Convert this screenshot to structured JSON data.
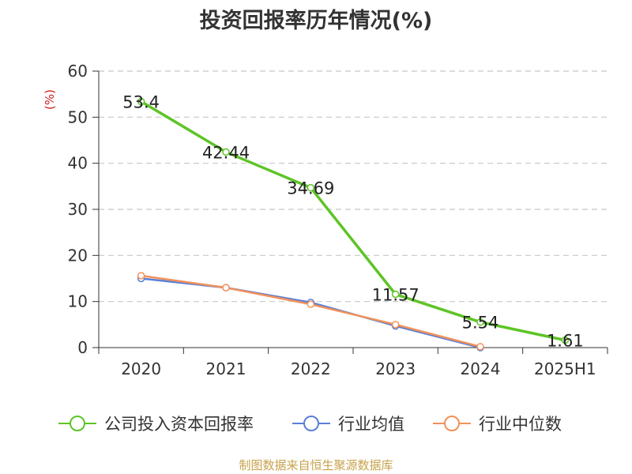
{
  "chart_data": {
    "type": "line",
    "title": "投资回报率历年情况(%)",
    "ylabel": "(%)",
    "xlabel": "",
    "categories": [
      "2020",
      "2021",
      "2022",
      "2023",
      "2024",
      "2025H1"
    ],
    "ylim": [
      0,
      60
    ],
    "yticks": [
      0,
      10,
      20,
      30,
      40,
      50,
      60
    ],
    "grid": true,
    "legend_position": "bottom",
    "series": [
      {
        "name": "公司投入资本回报率",
        "color": "#5ec427",
        "values": [
          53.4,
          42.44,
          34.69,
          11.57,
          5.54,
          1.61
        ],
        "labels": [
          "53.4",
          "42.44",
          "34.69",
          "11.57",
          "5.54",
          "1.61"
        ]
      },
      {
        "name": "行业均值",
        "color": "#5b7fd6",
        "values": [
          15.0,
          13.0,
          9.8,
          4.7,
          0.0,
          null
        ]
      },
      {
        "name": "行业中位数",
        "color": "#f2915a",
        "values": [
          15.6,
          13.0,
          9.4,
          5.0,
          0.2,
          null
        ]
      }
    ]
  },
  "source": "制图数据来自恒生聚源数据库"
}
